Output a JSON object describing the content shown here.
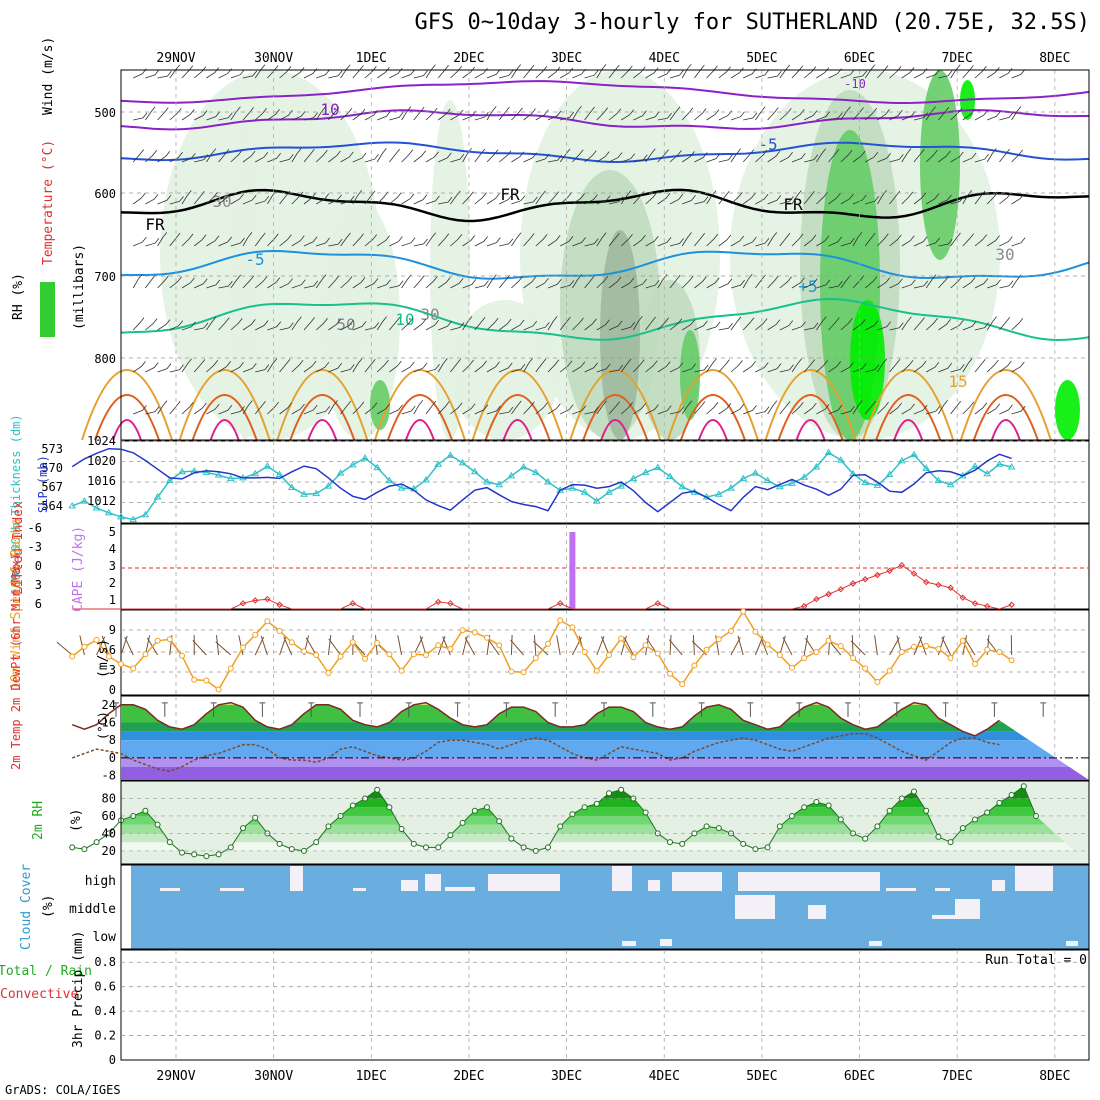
{
  "title": "GFS 0~10day 3-hourly for SUTHERLAND (20.75E, 32.5S)",
  "credit": "GrADS: COLA/IGES",
  "dates": [
    "29NOV",
    "30NOV",
    "1DEC",
    "2DEC",
    "3DEC",
    "4DEC",
    "5DEC",
    "6DEC",
    "7DEC",
    "8DEC"
  ],
  "colors": {
    "rh_light": "#e2f2e2",
    "rh_mid": "#bfdcbf",
    "rh_dark": "#9fb99f",
    "rh_green": "#66cc66",
    "rh_bright": "#00ee00",
    "temp_violet": "#8a22c8",
    "temp_blue": "#2452d6",
    "temp_lightblue": "#1e90dd",
    "temp_teal": "#18c08a",
    "temp_orange": "#e6a030",
    "temp_red": "#e06020",
    "temp_pink": "#e0208a",
    "slp": "#2237c8",
    "thick": "#30c0c8",
    "li": "#e03030",
    "cape": "#c070f0",
    "wind": "#f0a020",
    "barb10": "#7a5030",
    "cloud": "#6aaee0",
    "cloud_gap": "#f4f0f8"
  },
  "panels": {
    "upper": {
      "ylabel_rh": "RH (%)",
      "ylabel_temp": "Temperature (°C)",
      "ylabel_wind": "Wind (m/s)",
      "ylabel_unit": "(millibars)",
      "yticks": [
        "500",
        "600",
        "700",
        "800"
      ],
      "contour_labels": [
        "10",
        "-10",
        "-5",
        "FR",
        "FR",
        "FR",
        "-5",
        "+5",
        "10",
        "15",
        "30",
        "30",
        "30",
        "50"
      ]
    },
    "slp": {
      "ylabel_thick": "1000-500mb Thickness (dm)",
      "ylabel_slp": "SLP (mb)",
      "left_ticks": [
        "573",
        "570",
        "567",
        "564"
      ],
      "right_ticks": [
        "1024",
        "1020",
        "1016",
        "1012"
      ]
    },
    "li": {
      "ylabel_li": "Lifted Index",
      "ylabel_cape": "CAPE (J/kg)",
      "left_ticks": [
        "-6",
        "-3",
        "0",
        "3",
        "6"
      ],
      "right_ticks": [
        "5",
        "4",
        "3",
        "2",
        "1"
      ]
    },
    "wind10": {
      "ylabel": "10m Wind Speed & Barbs",
      "unit": "(m/s)",
      "ticks": [
        "9",
        "6",
        "3",
        "0"
      ]
    },
    "temp2m": {
      "ylabel": "2m Temp 2m DewPt (6hr Min/Max)",
      "unit": "(°C)",
      "ticks": [
        "24",
        "16",
        "8",
        "0",
        "-8"
      ]
    },
    "rh2m": {
      "ylabel": "2m RH",
      "unit": "(%)",
      "ticks": [
        "80",
        "60",
        "40",
        "20"
      ]
    },
    "cloud": {
      "ylabel": "Cloud Cover",
      "unit": "(%)",
      "levels": [
        "high",
        "middle",
        "low"
      ]
    },
    "precip": {
      "ylabel_total": "Total / Rain",
      "ylabel_conv": "Convective",
      "ylabel": "3hr Precip (mm)",
      "ticks": [
        "0.8",
        "0.6",
        "0.4",
        "0.2",
        "0"
      ],
      "run_total": "Run Total = 0"
    }
  },
  "chart_data": [
    {
      "type": "line",
      "name": "1000-500mb Thickness (dm)",
      "x_unit": "time (3-hourly, 28NOV-8DEC)",
      "ylim": [
        562,
        574
      ],
      "values": [
        564.5,
        565.2,
        564.2,
        563.5,
        562.9,
        562.5,
        563.2,
        565.8,
        568.2,
        569.5,
        569.6,
        569.4,
        569.0,
        568.5,
        568.6,
        569.2,
        570.3,
        569.1,
        567.2,
        566.2,
        566.3,
        567.4,
        569.3,
        570.5,
        571.5,
        570.1,
        568.2,
        567.1,
        567.0,
        568.3,
        570.6,
        571.9,
        570.8,
        569.5,
        568.0,
        567.6,
        568.9,
        570.2,
        569.4,
        568.0,
        566.8,
        567.1,
        566.5,
        565.2,
        566.5,
        567.4,
        568.5,
        569.4,
        570.1,
        568.8,
        567.3,
        566.5,
        565.8,
        566.2,
        567.1,
        568.5,
        569.3,
        568.2,
        567.3,
        567.8,
        568.7,
        570.2,
        572.3,
        571.2,
        569.2,
        567.9,
        567.5,
        569.1,
        571.1,
        572.0,
        570.0,
        568.2,
        567.6,
        568.9,
        570.3,
        569.2,
        570.6,
        570.2
      ]
    },
    {
      "type": "line",
      "name": "SLP (mb)",
      "ylim": [
        1008,
        1024
      ],
      "values": [
        1019.0,
        1020.5,
        1021.6,
        1022.5,
        1022.4,
        1021.7,
        1020.2,
        1018.5,
        1016.8,
        1016.6,
        1017.8,
        1018.2,
        1018.0,
        1017.6,
        1016.8,
        1016.8,
        1016.9,
        1016.7,
        1018.0,
        1019.1,
        1018.6,
        1016.8,
        1014.8,
        1013.2,
        1012.6,
        1014.0,
        1015.2,
        1015.6,
        1014.4,
        1012.5,
        1011.4,
        1010.5,
        1012.5,
        1014.4,
        1014.9,
        1013.5,
        1012.2,
        1011.6,
        1011.2,
        1010.4,
        1014.4,
        1015.5,
        1015.4,
        1014.8,
        1015.1,
        1016.0,
        1014.3,
        1012.0,
        1010.2,
        1012.0,
        1013.8,
        1014.2,
        1013.0,
        1011.6,
        1010.4,
        1013.0,
        1015.1,
        1014.5,
        1015.5,
        1016.5,
        1015.4,
        1014.6,
        1013.4,
        1014.6,
        1017.3,
        1017.4,
        1016.0,
        1014.2,
        1014.0,
        1015.6,
        1017.8,
        1018.2,
        1018.0,
        1017.2,
        1018.3,
        1020.1,
        1021.4,
        1020.6
      ]
    },
    {
      "type": "bar",
      "name": "CAPE (J/kg)",
      "note": "single spike near 3DEC 15Z",
      "values": [
        {
          "x_index": 41,
          "value": 5
        }
      ]
    },
    {
      "type": "line",
      "name": "Lifted Index",
      "ylim": [
        6,
        -6
      ],
      "values": [
        6,
        6,
        6,
        6,
        6,
        6,
        6,
        6,
        6,
        6,
        6,
        6,
        6,
        6,
        5.2,
        4.8,
        4.6,
        5.4,
        6,
        6,
        6,
        6,
        6,
        5.2,
        6,
        6,
        6,
        6,
        6,
        6,
        5.0,
        5.2,
        6,
        6,
        6,
        6,
        6,
        6,
        6,
        6,
        5.2,
        6,
        6,
        6,
        6,
        6,
        6,
        6,
        5.2,
        6,
        6,
        6,
        6,
        6,
        6,
        6,
        6,
        6,
        6,
        6,
        5.6,
        4.6,
        3.9,
        3.2,
        2.4,
        1.8,
        1.2,
        0.6,
        -0.2,
        1.0,
        2.2,
        2.6,
        3.0,
        4.4,
        5.2,
        5.6,
        6,
        5.4
      ]
    },
    {
      "type": "line",
      "name": "10m Wind Speed (m/s)",
      "ylim": [
        0,
        11
      ],
      "values": [
        4.6,
        5.9,
        6.8,
        4.6,
        3.6,
        3.0,
        4.9,
        6.7,
        6.9,
        4.7,
        1.5,
        1.4,
        0.2,
        3.0,
        5.8,
        7.5,
        9.3,
        8.0,
        6.5,
        5.3,
        4.8,
        2.4,
        4.6,
        6.5,
        4.3,
        6.4,
        4.9,
        2.7,
        4.9,
        4.8,
        6.1,
        5.6,
        8.1,
        7.8,
        7.1,
        6.1,
        2.6,
        2.5,
        4.4,
        6.3,
        9.4,
        8.5,
        5.2,
        2.7,
        4.8,
        7.0,
        4.5,
        6.1,
        5.0,
        2.3,
        0.9,
        3.4,
        5.5,
        6.9,
        8.0,
        10.6,
        7.9,
        6.2,
        4.8,
        3.1,
        4.4,
        5.2,
        6.7,
        6.0,
        4.4,
        3.0,
        1.2,
        2.7,
        5.2,
        5.9,
        6.0,
        5.6,
        4.4,
        6.7,
        3.6,
        5.5,
        5.2,
        4.1
      ]
    },
    {
      "type": "area",
      "name": "2m Temp (°C)",
      "ylim": [
        -10,
        28
      ],
      "values": [
        15,
        13,
        15,
        20,
        24,
        24,
        22,
        17,
        14,
        13,
        15,
        20,
        24,
        25,
        23,
        17,
        14,
        13,
        15,
        20,
        24,
        24,
        22,
        17,
        15,
        14,
        16,
        21,
        24,
        25,
        22,
        18,
        15,
        14,
        15,
        20,
        23,
        23,
        21,
        16,
        14,
        14,
        15,
        20,
        23,
        23,
        21,
        16,
        14,
        13,
        14,
        19,
        23,
        24,
        22,
        17,
        15,
        13,
        14,
        19,
        23,
        25,
        23,
        18,
        15,
        13,
        14,
        18,
        22,
        25,
        24,
        18,
        15,
        12,
        10,
        13,
        17
      ]
    },
    {
      "type": "line",
      "name": "2m DewPt (°C)",
      "values": [
        0,
        2,
        4,
        3,
        2,
        -1,
        -3,
        -5,
        -6,
        -4,
        -1,
        1,
        2,
        4,
        6,
        6,
        4,
        0,
        -1,
        -1,
        -2,
        0,
        4,
        5,
        3,
        1,
        0,
        -1,
        0,
        3,
        7,
        8,
        8,
        7,
        6,
        4,
        6,
        8,
        9,
        8,
        5,
        2,
        0,
        -1,
        2,
        5,
        4,
        3,
        2,
        -1,
        0,
        3,
        5,
        7,
        8,
        9,
        8,
        6,
        4,
        3,
        5,
        7,
        9,
        10,
        11,
        11,
        9,
        6,
        3,
        1,
        -1,
        3,
        7,
        9,
        9,
        7,
        6
      ]
    },
    {
      "type": "area",
      "name": "2m RH (%)",
      "ylim": [
        0,
        100
      ],
      "values": [
        24,
        22,
        30,
        40,
        55,
        60,
        66,
        50,
        30,
        18,
        16,
        14,
        16,
        24,
        46,
        58,
        40,
        28,
        22,
        20,
        30,
        48,
        60,
        72,
        80,
        90,
        70,
        45,
        28,
        24,
        24,
        38,
        52,
        66,
        70,
        54,
        34,
        24,
        20,
        24,
        48,
        62,
        70,
        74,
        86,
        90,
        80,
        64,
        40,
        30,
        28,
        40,
        48,
        46,
        40,
        28,
        22,
        24,
        48,
        60,
        70,
        76,
        72,
        56,
        40,
        34,
        48,
        66,
        80,
        88,
        66,
        36,
        30,
        46,
        56,
        64,
        75,
        84,
        94,
        60
      ]
    },
    {
      "type": "table",
      "name": "Cloud Cover (%)",
      "categories": [
        "high",
        "middle",
        "low"
      ]
    },
    {
      "type": "bar",
      "name": "3hr Precip (mm)",
      "ylim": [
        0,
        0.9
      ],
      "values": [],
      "run_total": 0
    }
  ]
}
